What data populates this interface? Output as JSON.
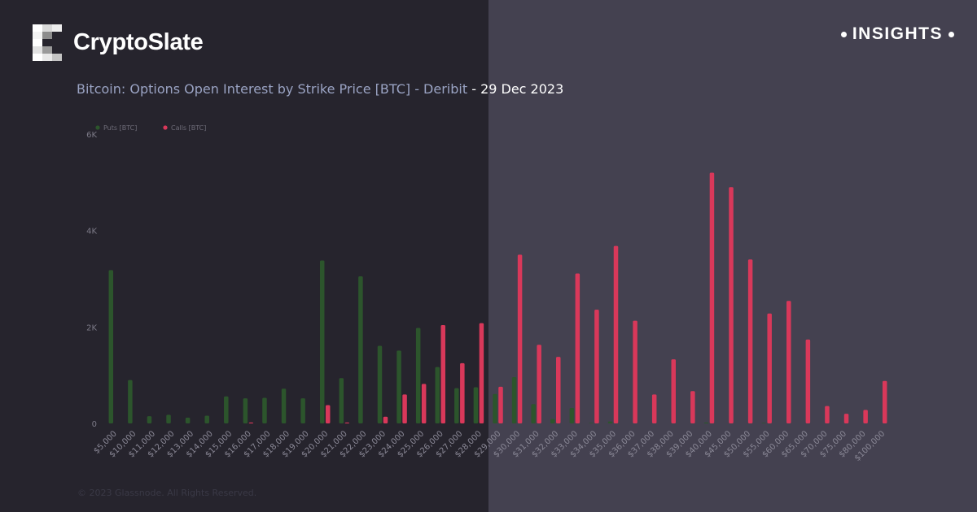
{
  "brand": {
    "name": "CryptoSlate",
    "badge": "INSIGHTS"
  },
  "chart_title": {
    "part1": "Bitcoin: Options Open Interest by Strike Price [BTC] - Deribit ",
    "part2": "- 29 Dec 2023"
  },
  "footer": {
    "copyright": "© 2023 Glassnode. All Rights Reserved."
  },
  "colors": {
    "left_panel": "#26242d",
    "right_panel": "#444150",
    "puts": "#2c552c",
    "calls": "#d9385a"
  },
  "chart_data": {
    "type": "bar",
    "title": "Bitcoin: Options Open Interest by Strike Price [BTC] - Deribit - 29 Dec 2023",
    "xlabel": "",
    "ylabel": "",
    "ylim": [
      0,
      6000
    ],
    "yticks": [
      {
        "value": 0,
        "label": "0"
      },
      {
        "value": 2000,
        "label": "2K"
      },
      {
        "value": 4000,
        "label": "4K"
      },
      {
        "value": 6000,
        "label": "6K"
      }
    ],
    "legend_position": "top-left",
    "grid": false,
    "categories": [
      "$5,000",
      "$10,000",
      "$11,000",
      "$12,000",
      "$13,000",
      "$14,000",
      "$15,000",
      "$16,000",
      "$17,000",
      "$18,000",
      "$19,000",
      "$20,000",
      "$21,000",
      "$22,000",
      "$23,000",
      "$24,000",
      "$25,000",
      "$26,000",
      "$27,000",
      "$28,000",
      "$29,000",
      "$30,000",
      "$31,000",
      "$32,000",
      "$33,000",
      "$34,000",
      "$35,000",
      "$36,000",
      "$37,000",
      "$38,000",
      "$39,000",
      "$40,000",
      "$45,000",
      "$50,000",
      "$55,000",
      "$60,000",
      "$65,000",
      "$70,000",
      "$75,000",
      "$80,000",
      "$100,000"
    ],
    "series": [
      {
        "name": "Puts [BTC]",
        "color": "#2c552c",
        "values": [
          3180,
          900,
          150,
          180,
          120,
          160,
          560,
          520,
          530,
          720,
          520,
          3380,
          940,
          3050,
          1610,
          1510,
          1980,
          1170,
          730,
          750,
          610,
          960,
          400,
          90,
          320,
          10,
          40,
          0,
          0,
          0,
          0,
          20,
          0,
          0,
          10,
          0,
          0,
          0,
          0,
          0,
          0
        ]
      },
      {
        "name": "Calls [BTC]",
        "color": "#d9385a",
        "values": [
          0,
          0,
          0,
          0,
          0,
          0,
          0,
          20,
          0,
          0,
          0,
          380,
          20,
          0,
          140,
          600,
          820,
          2040,
          1250,
          2080,
          760,
          3500,
          1630,
          1380,
          3110,
          2360,
          3680,
          2130,
          600,
          1330,
          670,
          5200,
          4900,
          3400,
          2280,
          2540,
          1740,
          360,
          200,
          280,
          880
        ]
      }
    ]
  }
}
